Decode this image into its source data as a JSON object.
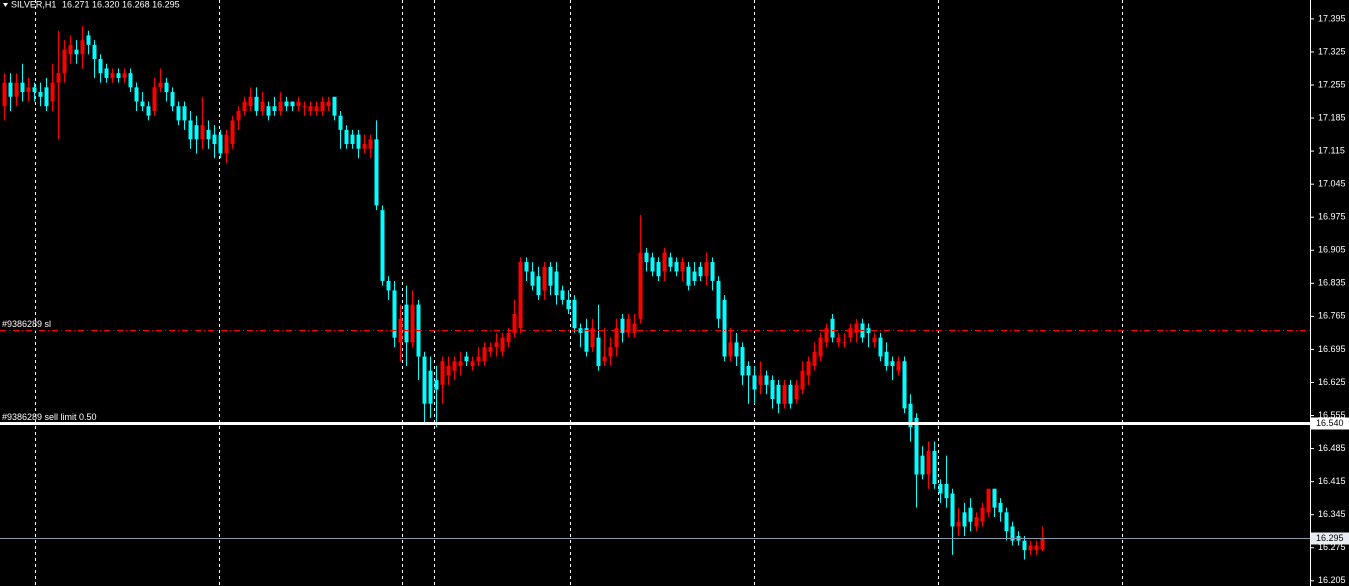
{
  "chart_data": {
    "type": "candlestick",
    "title": "SILVER,H1",
    "quote": "16.271 16.320 16.268 16.295",
    "up_color": "#ff0000",
    "down_color": "#00ffff",
    "ylim": [
      16.194,
      17.435
    ],
    "yticks": [
      17.395,
      17.325,
      17.255,
      17.185,
      17.115,
      17.045,
      16.975,
      16.905,
      16.835,
      16.765,
      16.695,
      16.625,
      16.555,
      16.485,
      16.415,
      16.345,
      16.275,
      16.205
    ],
    "open": [
      17.21,
      17.26,
      17.23,
      17.26,
      17.24,
      17.25,
      17.24,
      17.25,
      17.22,
      17.26,
      17.28,
      17.32,
      17.33,
      17.32,
      17.36,
      17.34,
      17.31,
      17.29,
      17.27,
      17.28,
      17.27,
      17.28,
      17.25,
      17.22,
      17.21,
      17.2,
      17.25,
      17.26,
      17.24,
      17.21,
      17.21,
      17.18,
      17.17,
      17.14,
      17.16,
      17.15,
      17.15,
      17.11,
      17.13,
      17.18,
      17.2,
      17.21,
      17.23,
      17.2,
      17.21,
      17.21,
      17.2,
      17.22,
      17.22,
      17.21,
      17.21,
      17.2,
      17.2,
      17.2,
      17.21,
      17.23,
      17.19,
      17.16,
      17.15,
      17.15,
      17.12,
      17.12,
      17.14,
      16.99,
      16.84,
      16.82,
      16.71,
      16.79,
      16.71,
      16.79,
      16.68,
      16.65,
      16.63,
      16.62,
      16.64,
      16.65,
      16.66,
      16.68,
      16.66,
      16.67,
      16.67,
      16.69,
      16.7,
      16.69,
      16.71,
      16.73,
      16.74,
      16.88,
      16.86,
      16.85,
      16.82,
      16.87,
      16.86,
      16.82,
      16.8,
      16.8,
      16.74,
      16.74,
      16.7,
      16.72,
      16.67,
      16.68,
      16.7,
      16.76,
      16.73,
      16.73,
      16.76,
      16.9,
      16.89,
      16.88,
      16.86,
      16.89,
      16.88,
      16.86,
      16.87,
      16.86,
      16.87,
      16.85,
      16.88,
      16.84,
      16.8,
      16.68,
      16.71,
      16.7,
      16.66,
      16.64,
      16.62,
      16.64,
      16.63,
      16.62,
      16.58,
      16.62,
      16.59,
      16.61,
      16.64,
      16.66,
      16.68,
      16.71,
      16.76,
      16.71,
      16.71,
      16.72,
      16.73,
      16.75,
      16.74,
      16.71,
      16.72,
      16.69,
      16.67,
      16.65,
      16.67,
      16.58,
      16.55,
      16.47,
      16.43,
      16.48,
      16.41,
      16.41,
      16.39,
      16.32,
      16.35,
      16.36,
      16.32,
      16.33,
      16.35,
      16.4,
      16.37,
      16.35,
      16.32,
      16.3,
      16.29,
      16.27,
      16.27,
      16.271
    ],
    "high": [
      17.28,
      17.28,
      17.28,
      17.3,
      17.27,
      17.26,
      17.26,
      17.27,
      17.3,
      17.37,
      17.35,
      17.36,
      17.35,
      17.38,
      17.37,
      17.35,
      17.32,
      17.3,
      17.29,
      17.29,
      17.29,
      17.29,
      17.26,
      17.24,
      17.22,
      17.27,
      17.29,
      17.27,
      17.25,
      17.22,
      17.22,
      17.2,
      17.19,
      17.23,
      17.18,
      17.17,
      17.16,
      17.16,
      17.19,
      17.21,
      17.23,
      17.25,
      17.25,
      17.24,
      17.22,
      17.23,
      17.24,
      17.23,
      17.22,
      17.23,
      17.22,
      17.22,
      17.22,
      17.23,
      17.23,
      17.23,
      17.2,
      17.17,
      17.16,
      17.16,
      17.15,
      17.15,
      17.18,
      17.0,
      16.85,
      16.84,
      16.79,
      16.83,
      16.82,
      16.8,
      16.69,
      16.68,
      16.66,
      16.68,
      16.68,
      16.68,
      16.69,
      16.69,
      16.68,
      16.7,
      16.71,
      16.71,
      16.73,
      16.73,
      16.74,
      16.8,
      16.89,
      16.89,
      16.88,
      16.87,
      16.88,
      16.88,
      16.88,
      16.83,
      16.82,
      16.81,
      16.75,
      16.76,
      16.76,
      16.79,
      16.74,
      16.72,
      16.76,
      16.77,
      16.77,
      16.77,
      16.98,
      16.91,
      16.9,
      16.89,
      16.91,
      16.9,
      16.89,
      16.89,
      16.88,
      16.88,
      16.88,
      16.9,
      16.89,
      16.85,
      16.81,
      16.74,
      16.73,
      16.71,
      16.67,
      16.66,
      16.67,
      16.65,
      16.64,
      16.63,
      16.63,
      16.63,
      16.63,
      16.67,
      16.68,
      16.71,
      16.73,
      16.75,
      16.77,
      16.73,
      16.73,
      16.75,
      16.76,
      16.76,
      16.75,
      16.73,
      16.73,
      16.71,
      16.68,
      16.68,
      16.68,
      16.6,
      16.56,
      16.49,
      16.5,
      16.5,
      16.42,
      16.47,
      16.4,
      16.36,
      16.37,
      16.38,
      16.35,
      16.37,
      16.4,
      16.4,
      16.38,
      16.36,
      16.33,
      16.31,
      16.3,
      16.29,
      16.29,
      16.32
    ],
    "low": [
      17.18,
      17.2,
      17.21,
      17.22,
      17.22,
      17.22,
      17.21,
      17.2,
      17.2,
      17.14,
      17.26,
      17.3,
      17.3,
      17.29,
      17.32,
      17.27,
      17.26,
      17.26,
      17.26,
      17.26,
      17.26,
      17.24,
      17.2,
      17.2,
      17.18,
      17.19,
      17.24,
      17.22,
      17.2,
      17.17,
      17.16,
      17.12,
      17.11,
      17.12,
      17.12,
      17.1,
      17.1,
      17.09,
      17.12,
      17.16,
      17.19,
      17.2,
      17.19,
      17.19,
      17.18,
      17.19,
      17.19,
      17.2,
      17.2,
      17.2,
      17.19,
      17.19,
      17.19,
      17.19,
      17.2,
      17.18,
      17.12,
      17.12,
      17.12,
      17.1,
      17.11,
      17.1,
      16.99,
      16.83,
      16.8,
      16.7,
      16.67,
      16.66,
      16.7,
      16.63,
      16.54,
      16.55,
      16.53,
      16.58,
      16.62,
      16.63,
      16.64,
      16.66,
      16.65,
      16.66,
      16.66,
      16.68,
      16.68,
      16.68,
      16.7,
      16.72,
      16.73,
      16.84,
      16.82,
      16.8,
      16.8,
      16.81,
      16.79,
      16.79,
      16.77,
      16.73,
      16.7,
      16.68,
      16.69,
      16.65,
      16.66,
      16.66,
      16.68,
      16.71,
      16.72,
      16.72,
      16.75,
      16.86,
      16.85,
      16.84,
      16.84,
      16.86,
      16.85,
      16.84,
      16.82,
      16.83,
      16.84,
      16.83,
      16.82,
      16.74,
      16.67,
      16.67,
      16.66,
      16.62,
      16.58,
      16.58,
      16.6,
      16.6,
      16.57,
      16.56,
      16.57,
      16.57,
      16.58,
      16.6,
      16.62,
      16.65,
      16.67,
      16.7,
      16.71,
      16.7,
      16.7,
      16.71,
      16.71,
      16.71,
      16.7,
      16.7,
      16.67,
      16.65,
      16.63,
      16.64,
      16.56,
      16.5,
      16.36,
      16.42,
      16.4,
      16.4,
      16.37,
      16.36,
      16.26,
      16.3,
      16.3,
      16.31,
      16.31,
      16.32,
      16.34,
      16.34,
      16.33,
      16.29,
      16.28,
      16.28,
      16.25,
      16.26,
      16.26,
      16.268
    ],
    "close": [
      17.26,
      17.23,
      17.26,
      17.24,
      17.25,
      17.24,
      17.23,
      17.21,
      17.26,
      17.28,
      17.33,
      17.34,
      17.32,
      17.35,
      17.34,
      17.31,
      17.28,
      17.27,
      17.28,
      17.27,
      17.28,
      17.25,
      17.22,
      17.21,
      17.19,
      17.25,
      17.26,
      17.24,
      17.21,
      17.18,
      17.18,
      17.14,
      17.14,
      17.17,
      17.14,
      17.13,
      17.11,
      17.15,
      17.18,
      17.2,
      17.22,
      17.23,
      17.2,
      17.22,
      17.19,
      17.2,
      17.22,
      17.21,
      17.21,
      17.22,
      17.21,
      17.21,
      17.21,
      17.22,
      17.22,
      17.19,
      17.16,
      17.13,
      17.13,
      17.12,
      17.13,
      17.14,
      17.0,
      16.84,
      16.82,
      16.72,
      16.76,
      16.71,
      16.79,
      16.68,
      16.58,
      16.58,
      16.61,
      16.67,
      16.66,
      16.67,
      16.67,
      16.67,
      16.67,
      16.68,
      16.7,
      16.7,
      16.71,
      16.72,
      16.73,
      16.77,
      16.88,
      16.86,
      16.83,
      16.81,
      16.87,
      16.83,
      16.81,
      16.8,
      16.78,
      16.74,
      16.73,
      16.69,
      16.74,
      16.66,
      16.68,
      16.7,
      16.74,
      16.73,
      16.76,
      16.75,
      16.9,
      16.88,
      16.86,
      16.85,
      16.9,
      16.87,
      16.86,
      16.88,
      16.83,
      16.84,
      16.85,
      16.88,
      16.84,
      16.76,
      16.68,
      16.71,
      16.68,
      16.64,
      16.64,
      16.61,
      16.64,
      16.62,
      16.59,
      16.58,
      16.62,
      16.58,
      16.62,
      16.65,
      16.67,
      16.69,
      16.72,
      16.74,
      16.72,
      16.72,
      16.71,
      16.74,
      16.75,
      16.72,
      16.73,
      16.72,
      16.68,
      16.66,
      16.66,
      16.67,
      16.57,
      16.53,
      16.43,
      16.43,
      16.48,
      16.41,
      16.39,
      16.38,
      16.32,
      16.33,
      16.32,
      16.33,
      16.34,
      16.36,
      16.4,
      16.36,
      16.35,
      16.31,
      16.29,
      16.29,
      16.27,
      16.28,
      16.28,
      16.295
    ],
    "levels": [
      {
        "name": "#9386289 sl",
        "value": 16.737,
        "color": "#ff0000",
        "style": "dashdot"
      },
      {
        "name": "#9386289 sell limit 0.50",
        "value": 16.54,
        "label": "16.540",
        "color": "#ffffff",
        "style": "solid"
      },
      {
        "value": 16.295,
        "label": "16.295",
        "color": "#8c9aae",
        "style": "solid"
      }
    ]
  }
}
